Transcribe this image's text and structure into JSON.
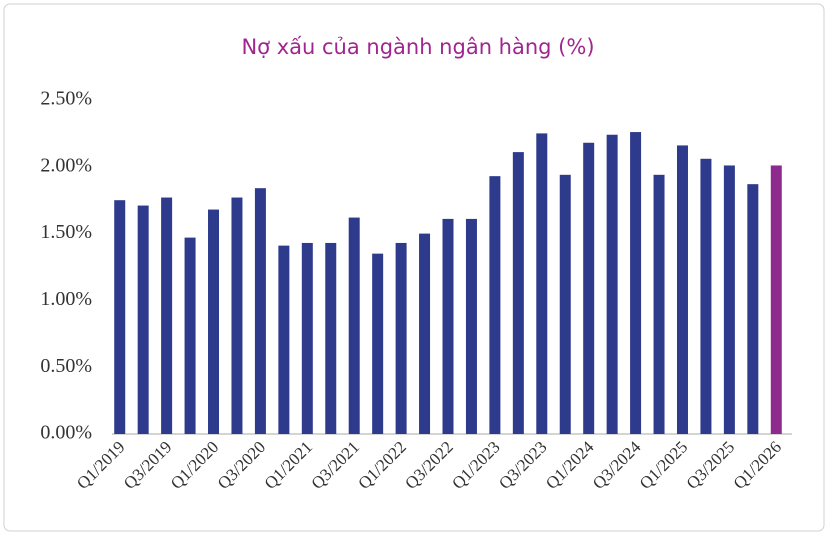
{
  "chart_data": {
    "type": "bar",
    "title": "Nợ xấu của ngành ngân hàng (%)",
    "categories": [
      "Q1/2019",
      null,
      "Q3/2019",
      null,
      "Q1/2020",
      null,
      "Q3/2020",
      null,
      "Q1/2021",
      null,
      "Q3/2021",
      null,
      "Q1/2022",
      null,
      "Q3/2022",
      null,
      "Q1/2023",
      null,
      "Q3/2023",
      null,
      "Q1/2024",
      null,
      "Q3/2024",
      null,
      "Q1/2025",
      null,
      "Q3/2025",
      null,
      "Q1/2026"
    ],
    "values": [
      1.75,
      1.71,
      1.77,
      1.47,
      1.68,
      1.77,
      1.84,
      1.41,
      1.43,
      1.43,
      1.62,
      1.35,
      1.43,
      1.5,
      1.61,
      1.61,
      1.93,
      2.11,
      2.25,
      1.94,
      2.18,
      2.24,
      2.26,
      1.94,
      2.16,
      2.06,
      2.01,
      1.87,
      2.01
    ],
    "colors": [
      "#2e3a8c",
      "#2e3a8c",
      "#2e3a8c",
      "#2e3a8c",
      "#2e3a8c",
      "#2e3a8c",
      "#2e3a8c",
      "#2e3a8c",
      "#2e3a8c",
      "#2e3a8c",
      "#2e3a8c",
      "#2e3a8c",
      "#2e3a8c",
      "#2e3a8c",
      "#2e3a8c",
      "#2e3a8c",
      "#2e3a8c",
      "#2e3a8c",
      "#2e3a8c",
      "#2e3a8c",
      "#2e3a8c",
      "#2e3a8c",
      "#2e3a8c",
      "#2e3a8c",
      "#2e3a8c",
      "#2e3a8c",
      "#2e3a8c",
      "#2e3a8c",
      "#8e2a8e"
    ],
    "ylim": [
      0,
      2.5
    ],
    "yticks": [
      {
        "value": 0,
        "label": "0.00%"
      },
      {
        "value": 0.5,
        "label": "0.50%"
      },
      {
        "value": 1,
        "label": "1.00%"
      },
      {
        "value": 1.5,
        "label": "1.50%"
      },
      {
        "value": 2,
        "label": "2.00%"
      },
      {
        "value": 2.5,
        "label": "2.50%"
      }
    ],
    "grid": false
  }
}
